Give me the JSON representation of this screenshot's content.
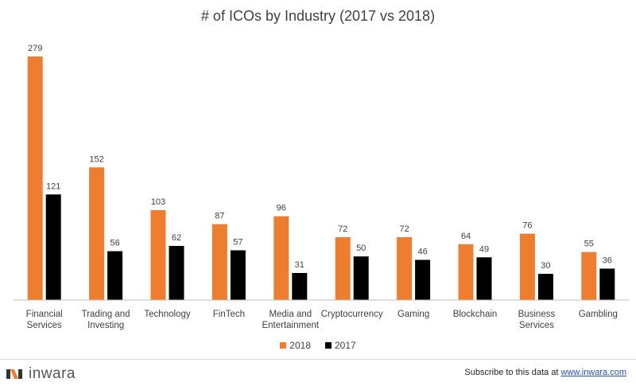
{
  "chart_data": {
    "type": "bar",
    "title": "# of ICOs by Industry (2017 vs 2018)",
    "categories": [
      [
        "Financial",
        "Services"
      ],
      [
        "Trading and",
        "Investing"
      ],
      [
        "Technology"
      ],
      [
        "FinTech"
      ],
      [
        "Media and",
        "Entertainment"
      ],
      [
        "Cryptocurrency"
      ],
      [
        "Gaming"
      ],
      [
        "Blockchain"
      ],
      [
        "Business",
        "Services"
      ],
      [
        "Gambling"
      ]
    ],
    "series": [
      {
        "name": "2018",
        "color": "#ed7d31",
        "values": [
          279,
          152,
          103,
          87,
          96,
          72,
          72,
          64,
          76,
          55
        ]
      },
      {
        "name": "2017",
        "color": "#000000",
        "values": [
          121,
          56,
          62,
          57,
          31,
          50,
          46,
          49,
          30,
          36
        ]
      }
    ],
    "ylim": [
      0,
      279
    ],
    "legend": "bottom",
    "grid": false
  },
  "footer": {
    "brand": "inwara",
    "subscribe_text": "Subscribe to this data at ",
    "subscribe_link": "www.inwara.com"
  }
}
